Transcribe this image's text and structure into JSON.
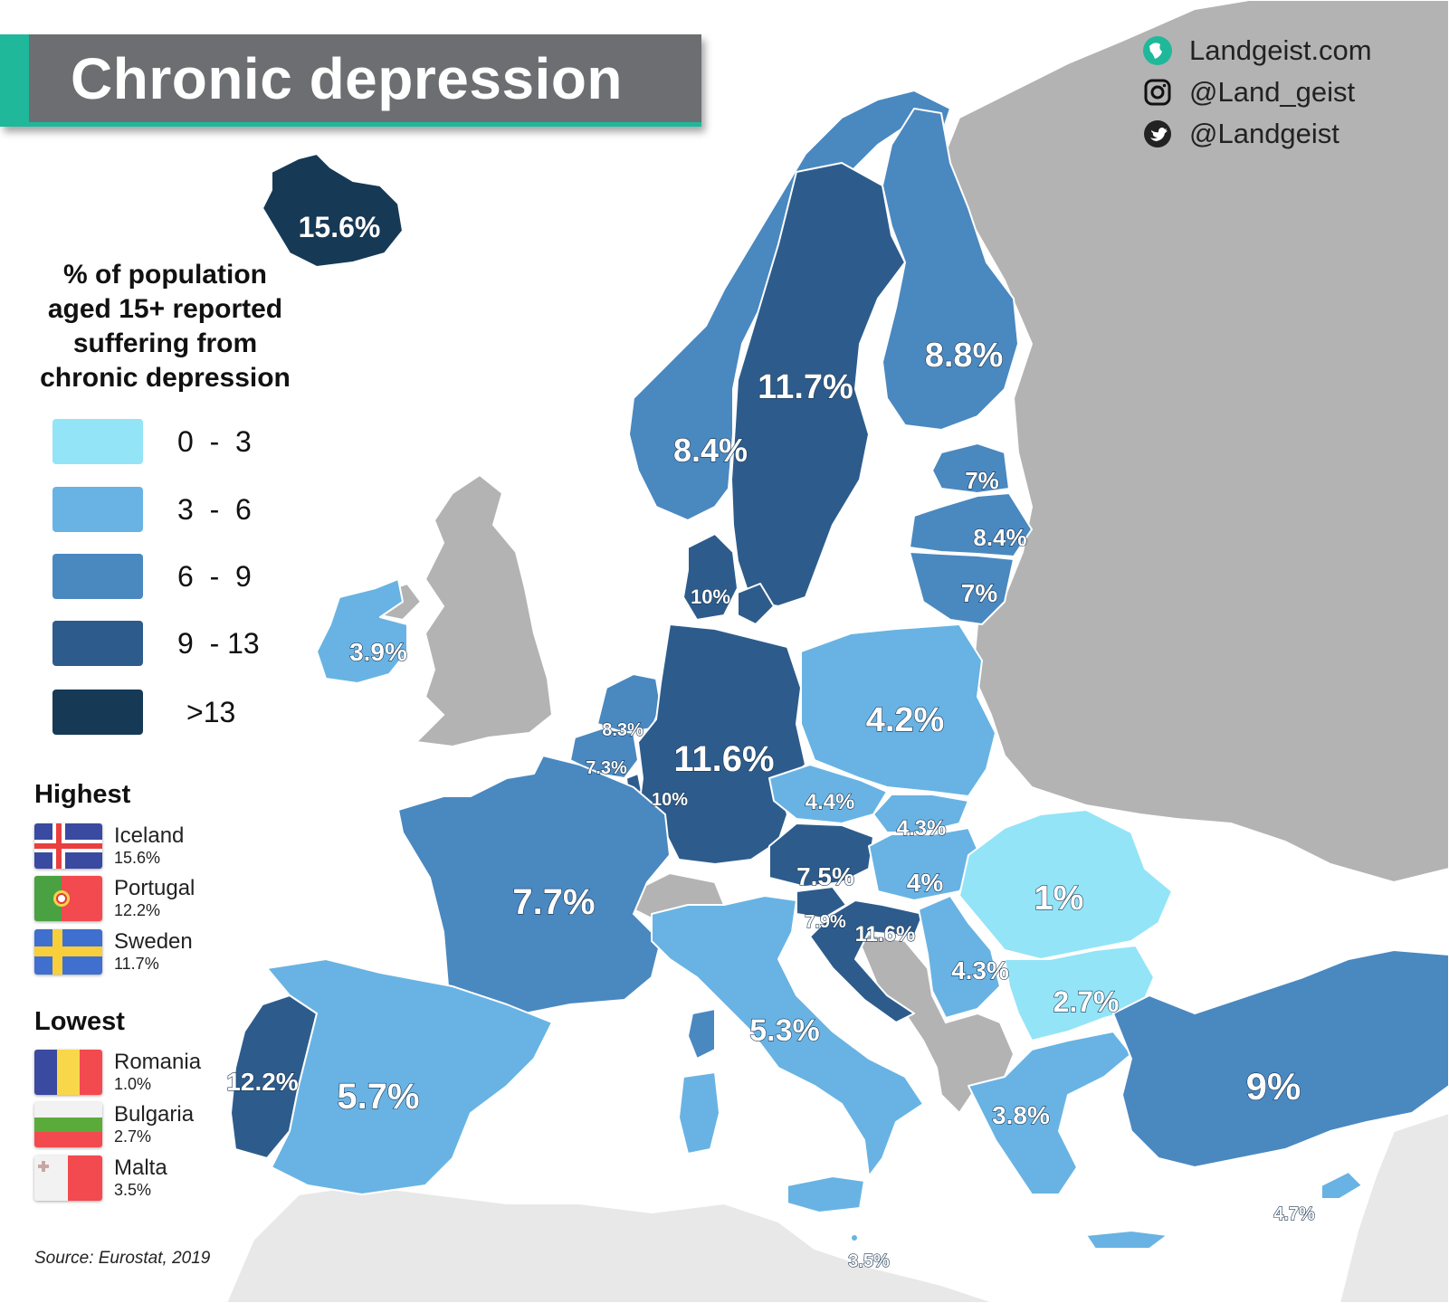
{
  "title": "Chronic depression",
  "social": [
    {
      "icon": "globe-icon",
      "text": "Landgeist.com"
    },
    {
      "icon": "instagram-icon",
      "text": "@Land_geist"
    },
    {
      "icon": "twitter-icon",
      "text": "@Landgeist"
    }
  ],
  "legend": {
    "title_lines": [
      "% of population",
      "aged 15+ reported",
      "suffering from",
      "chronic depression"
    ],
    "bins": [
      {
        "label": "0  -  3",
        "color": "#93e4f7"
      },
      {
        "label": "3  -  6",
        "color": "#68b3e3"
      },
      {
        "label": "6  -  9",
        "color": "#4a88c0"
      },
      {
        "label": "9  - 13",
        "color": "#2d5c8c"
      },
      {
        "label": ">13",
        "color": "#163a56"
      }
    ]
  },
  "highest": {
    "title": "Highest",
    "items": [
      {
        "name": "Iceland",
        "value": "15.6%"
      },
      {
        "name": "Portugal",
        "value": "12.2%"
      },
      {
        "name": "Sweden",
        "value": "11.7%"
      }
    ]
  },
  "lowest": {
    "title": "Lowest",
    "items": [
      {
        "name": "Romania",
        "value": "1.0%"
      },
      {
        "name": "Bulgaria",
        "value": "2.7%"
      },
      {
        "name": "Malta",
        "value": "3.5%"
      }
    ]
  },
  "source": "Source: Eurostat, 2019",
  "countries": {
    "iceland": "15.6%",
    "norway": "8.4%",
    "sweden": "11.7%",
    "finland": "8.8%",
    "estonia": "7%",
    "latvia": "8.4%",
    "lithuania": "7%",
    "denmark": "10%",
    "ireland": "3.9%",
    "netherlands": "8.3%",
    "belgium": "7.3%",
    "luxembourg": "10%",
    "germany": "11.6%",
    "poland": "4.2%",
    "czechia": "4.4%",
    "slovakia": "4.3%",
    "austria": "7.5%",
    "hungary": "4%",
    "slovenia": "7.9%",
    "croatia": "11.6%",
    "serbia": "4.3%",
    "romania": "1%",
    "bulgaria": "2.7%",
    "france": "7.7%",
    "portugal": "12.2%",
    "spain": "5.7%",
    "italy": "5.3%",
    "greece": "3.8%",
    "turkey": "9%",
    "cyprus": "4.7%",
    "malta": "3.5%"
  }
}
